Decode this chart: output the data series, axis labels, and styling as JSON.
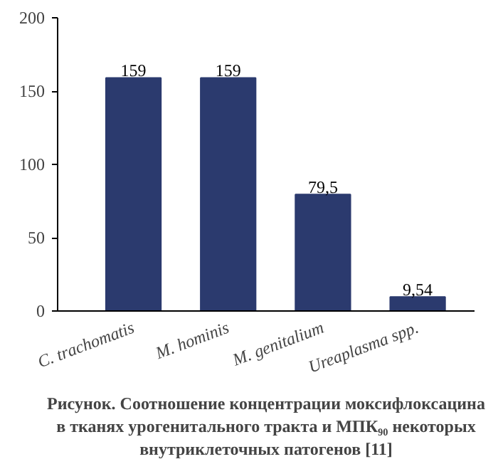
{
  "chart_data": {
    "type": "bar",
    "title": "Рисунок. Соотношение концентрации моксифлоксацина в тканях урогенитального тракта и МПК₉₀ некоторых внутриклеточных патогенов [11]",
    "categories": [
      "C. trachomatis",
      "M. hominis",
      "M. genitalium",
      "Ureaplasma spp."
    ],
    "values": [
      159,
      159,
      79.5,
      9.54
    ],
    "value_labels": [
      "159",
      "159",
      "79,5",
      "9,54"
    ],
    "color": "#2b3a6e",
    "ylim": [
      0,
      200
    ],
    "yticks": [
      0,
      50,
      100,
      150,
      200
    ],
    "grid": false
  }
}
